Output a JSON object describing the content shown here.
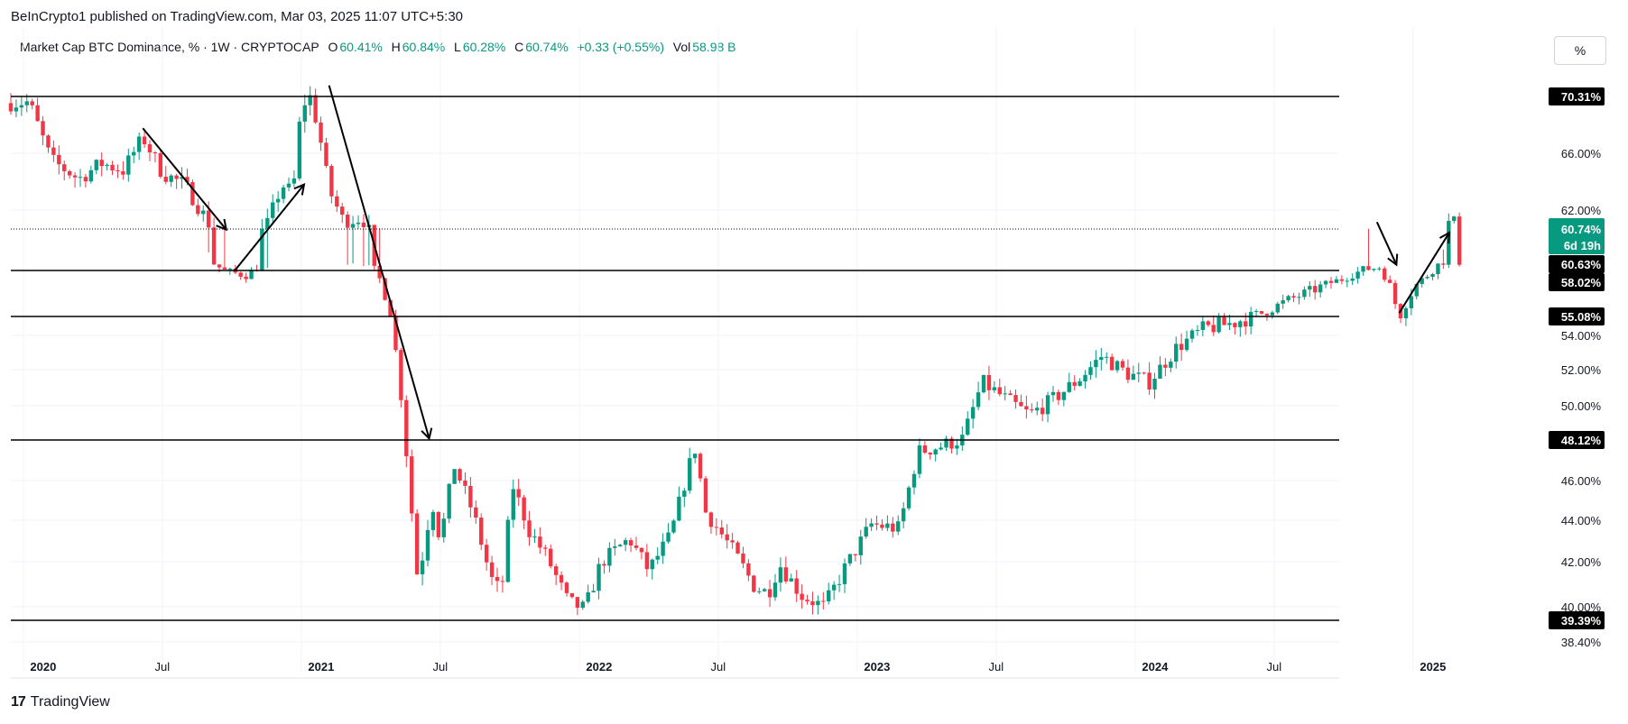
{
  "header": {
    "publish_line": "BeInCrypto1 published on TradingView.com, Mar 03, 2025 11:07 UTC+5:30"
  },
  "legend": {
    "symbol": "Market Cap BTC Dominance, % · 1W · CRYPTOCAP",
    "open_label": "O",
    "open": "60.41%",
    "high_label": "H",
    "high": "60.84%",
    "low_label": "L",
    "low": "60.28%",
    "close_label": "C",
    "close": "60.74%",
    "change": "+0.33 (+0.55%)",
    "vol_label": "Vol",
    "vol": "58.98 B"
  },
  "toolbar": {
    "scale_button": "%"
  },
  "footer": {
    "brand_logo": "17",
    "brand": "TradingView"
  },
  "colors": {
    "up": "#089981",
    "down": "#f23645",
    "line": "#000000",
    "current": "#089981"
  },
  "chart_data": {
    "type": "candlestick",
    "title": "Market Cap BTC Dominance, % · 1W · CRYPTOCAP",
    "y_unit": "%",
    "y_ticks": [
      "66.00%",
      "62.00%",
      "54.00%",
      "52.00%",
      "50.00%",
      "46.00%",
      "44.00%",
      "42.00%",
      "40.00%",
      "38.40%"
    ],
    "y_tick_values": [
      66,
      62,
      54,
      52,
      50,
      46,
      44,
      42,
      40,
      38.4
    ],
    "x_ticks": [
      {
        "label": "2020",
        "t": 2020.0,
        "year": true
      },
      {
        "label": "Jul",
        "t": 2020.5,
        "year": false
      },
      {
        "label": "2021",
        "t": 2021.0,
        "year": true
      },
      {
        "label": "Jul",
        "t": 2021.5,
        "year": false
      },
      {
        "label": "2022",
        "t": 2022.0,
        "year": true
      },
      {
        "label": "Jul",
        "t": 2022.5,
        "year": false
      },
      {
        "label": "2023",
        "t": 2023.0,
        "year": true
      },
      {
        "label": "Jul",
        "t": 2023.5,
        "year": false
      },
      {
        "label": "2024",
        "t": 2024.0,
        "year": true
      },
      {
        "label": "Jul",
        "t": 2024.5,
        "year": false
      },
      {
        "label": "2025",
        "t": 2025.0,
        "year": true
      }
    ],
    "horizontal_levels": [
      {
        "value": 70.31,
        "label": "70.31%"
      },
      {
        "value": 58.02,
        "label": "58.02%"
      },
      {
        "value": 55.08,
        "label": "55.08%"
      },
      {
        "value": 48.12,
        "label": "48.12%"
      },
      {
        "value": 39.39,
        "label": "39.39%"
      }
    ],
    "current_price": {
      "value": 60.74,
      "label": "60.74%",
      "countdown": "6d 19h"
    },
    "extra_price_label": {
      "value": 60.63,
      "label": "60.63%"
    },
    "anchors": [
      [
        2019.95,
        69.8
      ],
      [
        2020.02,
        69.9
      ],
      [
        2020.1,
        65.5
      ],
      [
        2020.2,
        64.2
      ],
      [
        2020.28,
        65.3
      ],
      [
        2020.36,
        64.8
      ],
      [
        2020.43,
        67.2
      ],
      [
        2020.5,
        64.6
      ],
      [
        2020.58,
        63.8
      ],
      [
        2020.66,
        61.3
      ],
      [
        2020.72,
        59.7
      ],
      [
        2020.8,
        59.0
      ],
      [
        2020.88,
        61.1
      ],
      [
        2020.93,
        63.8
      ],
      [
        2020.97,
        63.2
      ],
      [
        2021.0,
        69.5
      ],
      [
        2021.03,
        70.4
      ],
      [
        2021.06,
        68.0
      ],
      [
        2021.1,
        63.4
      ],
      [
        2021.15,
        61.3
      ],
      [
        2021.22,
        61.5
      ],
      [
        2021.27,
        59.5
      ],
      [
        2021.32,
        55.5
      ],
      [
        2021.36,
        50.5
      ],
      [
        2021.39,
        45.5
      ],
      [
        2021.42,
        41.0
      ],
      [
        2021.47,
        45.0
      ],
      [
        2021.5,
        43.0
      ],
      [
        2021.55,
        46.8
      ],
      [
        2021.62,
        44.3
      ],
      [
        2021.68,
        41.3
      ],
      [
        2021.72,
        40.6
      ],
      [
        2021.76,
        45.8
      ],
      [
        2021.82,
        43.5
      ],
      [
        2021.88,
        42.3
      ],
      [
        2021.96,
        40.2
      ],
      [
        2022.02,
        39.9
      ],
      [
        2022.08,
        42.0
      ],
      [
        2022.18,
        43.1
      ],
      [
        2022.25,
        41.6
      ],
      [
        2022.33,
        43.3
      ],
      [
        2022.4,
        47.0
      ],
      [
        2022.42,
        47.8
      ],
      [
        2022.45,
        44.5
      ],
      [
        2022.55,
        42.6
      ],
      [
        2022.63,
        40.9
      ],
      [
        2022.68,
        40.6
      ],
      [
        2022.72,
        41.9
      ],
      [
        2022.8,
        40.5
      ],
      [
        2022.88,
        40.0
      ],
      [
        2022.96,
        41.8
      ],
      [
        2023.05,
        43.8
      ],
      [
        2023.15,
        43.6
      ],
      [
        2023.22,
        47.5
      ],
      [
        2023.3,
        47.8
      ],
      [
        2023.38,
        48.2
      ],
      [
        2023.45,
        51.3
      ],
      [
        2023.55,
        50.2
      ],
      [
        2023.62,
        49.5
      ],
      [
        2023.7,
        50.3
      ],
      [
        2023.8,
        51.5
      ],
      [
        2023.88,
        52.8
      ],
      [
        2023.97,
        51.8
      ],
      [
        2024.05,
        51.3
      ],
      [
        2024.15,
        53.3
      ],
      [
        2024.25,
        54.4
      ],
      [
        2024.35,
        54.7
      ],
      [
        2024.45,
        55.3
      ],
      [
        2024.55,
        56.5
      ],
      [
        2024.65,
        57.5
      ],
      [
        2024.75,
        58.6
      ],
      [
        2024.82,
        59.8
      ],
      [
        2024.88,
        60.1
      ],
      [
        2024.92,
        57.5
      ],
      [
        2024.95,
        55.1
      ],
      [
        2025.0,
        57.5
      ],
      [
        2025.05,
        59.0
      ],
      [
        2025.1,
        60.8
      ],
      [
        2025.14,
        61.2
      ],
      [
        2025.17,
        60.74
      ]
    ],
    "annotations": [
      {
        "type": "arrow",
        "from": [
          2020.43,
          67.9
        ],
        "to": [
          2020.73,
          60.7
        ]
      },
      {
        "type": "arrow",
        "from": [
          2020.76,
          58.0
        ],
        "to": [
          2021.01,
          63.8
        ]
      },
      {
        "type": "arrow",
        "from": [
          2021.1,
          71.2
        ],
        "to": [
          2021.46,
          48.2
        ]
      },
      {
        "type": "arrow",
        "from": [
          2024.87,
          61.2
        ],
        "to": [
          2024.94,
          58.4
        ]
      },
      {
        "type": "arrow",
        "from": [
          2024.95,
          55.3
        ],
        "to": [
          2025.13,
          60.5
        ]
      }
    ]
  }
}
